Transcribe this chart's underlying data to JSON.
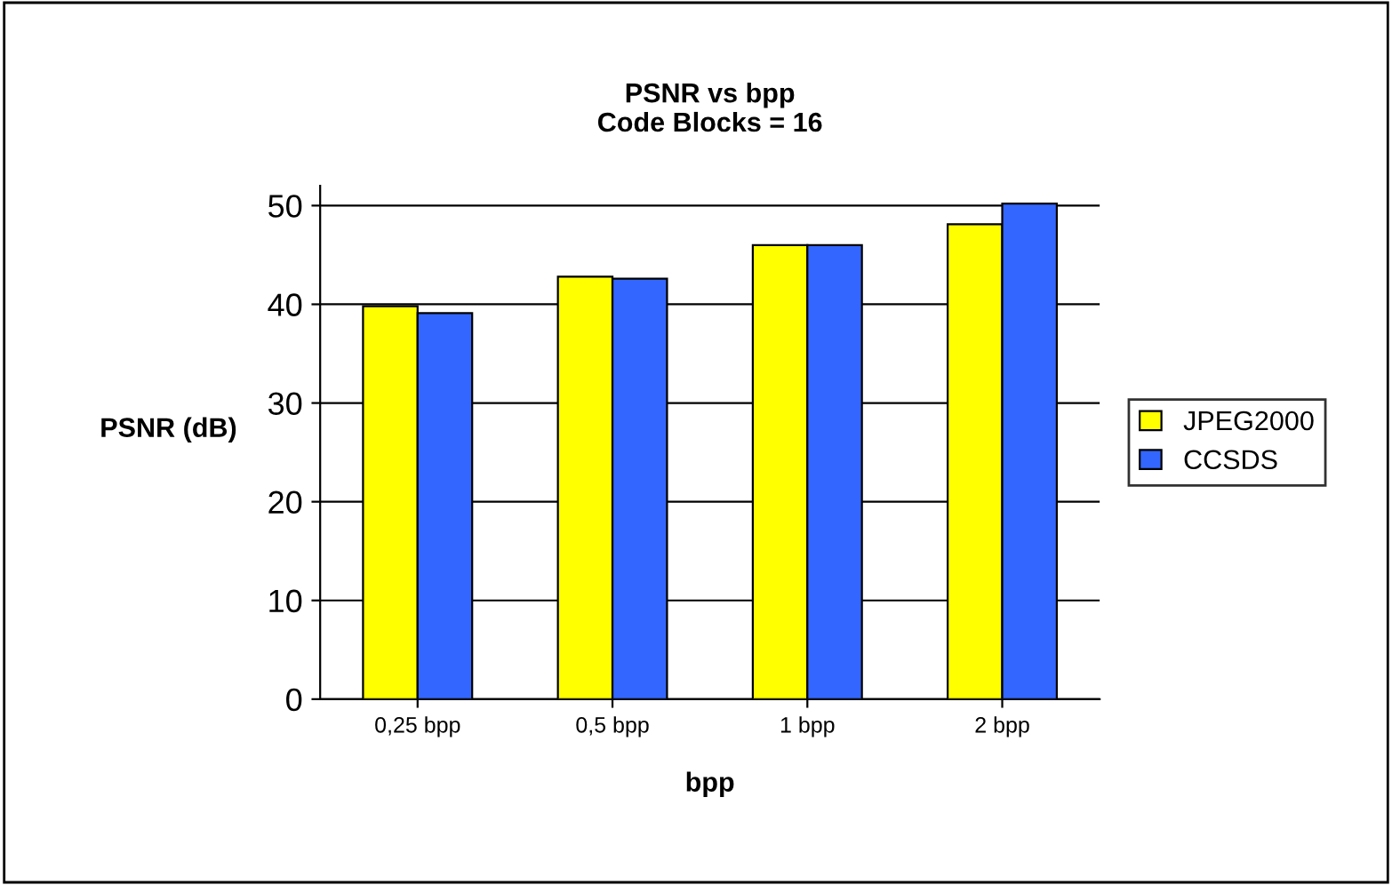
{
  "chart_data": {
    "type": "bar",
    "title": "PSNR vs bpp\nCode Blocks = 16",
    "xlabel": "bpp",
    "ylabel": "PSNR (dB)",
    "categories": [
      "0,25 bpp",
      "0,5 bpp",
      "1 bpp",
      "2 bpp"
    ],
    "series": [
      {
        "name": "JPEG2000",
        "color": "#ffff00",
        "values": [
          39.8,
          42.8,
          46.0,
          48.1
        ]
      },
      {
        "name": "CCSDS",
        "color": "#3366ff",
        "values": [
          39.1,
          42.6,
          46.0,
          50.2
        ]
      }
    ],
    "ylim": [
      0,
      52
    ],
    "yticks": [
      0,
      10,
      20,
      30,
      40,
      50
    ],
    "grid": "y",
    "legend": "right"
  }
}
